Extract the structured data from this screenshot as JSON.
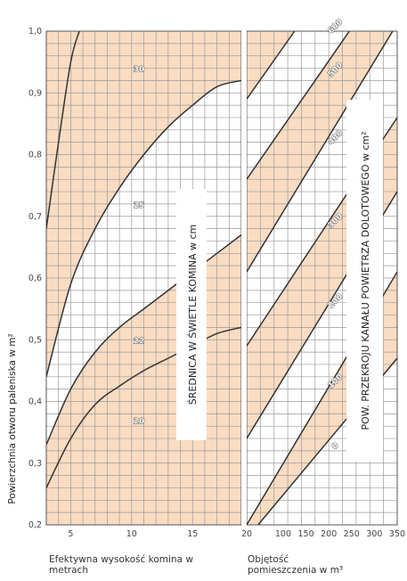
{
  "chart_data": [
    {
      "type": "line",
      "title": "",
      "xlabel": "Efektywna wysokość komina w metrach",
      "ylabel": "Powierzchnia otworu paleniska w m²",
      "xlim": [
        3,
        19
      ],
      "ylim": [
        0.2,
        1.0
      ],
      "x_ticks": [
        "5",
        "10",
        "15"
      ],
      "y_ticks": [
        "0,2",
        "0,3",
        "0,4",
        "0,5",
        "0,6",
        "0,7",
        "0,8",
        "0,9",
        "1,0"
      ],
      "band_label": "ŚREDNICA W ŚWIETLE KOMINA w cm",
      "series": [
        {
          "name": "30",
          "points": [
            [
              3,
              0.68
            ],
            [
              4,
              0.82
            ],
            [
              5,
              0.95
            ],
            [
              5.7,
              1.0
            ]
          ]
        },
        {
          "name": "25",
          "points": [
            [
              3,
              0.44
            ],
            [
              5,
              0.59
            ],
            [
              7,
              0.68
            ],
            [
              9,
              0.746
            ],
            [
              11,
              0.8
            ],
            [
              13,
              0.845
            ],
            [
              15,
              0.88
            ],
            [
              17,
              0.91
            ],
            [
              19,
              0.92
            ]
          ]
        },
        {
          "name": "22",
          "points": [
            [
              3,
              0.33
            ],
            [
              5,
              0.42
            ],
            [
              7,
              0.48
            ],
            [
              9,
              0.52
            ],
            [
              11,
              0.55
            ],
            [
              13,
              0.58
            ],
            [
              15,
              0.61
            ],
            [
              17,
              0.64
            ],
            [
              19,
              0.67
            ]
          ]
        },
        {
          "name": "20",
          "points": [
            [
              3,
              0.26
            ],
            [
              5,
              0.34
            ],
            [
              7,
              0.395
            ],
            [
              9,
              0.425
            ],
            [
              11,
              0.45
            ],
            [
              13,
              0.47
            ],
            [
              15,
              0.49
            ],
            [
              17,
              0.51
            ],
            [
              19,
              0.52
            ]
          ]
        }
      ],
      "shaded_bands": [
        "30",
        "25",
        "22"
      ],
      "value_labels": [
        {
          "text": "30",
          "x": 10.6,
          "y": 0.94
        },
        {
          "text": "25",
          "x": 10.6,
          "y": 0.72
        },
        {
          "text": "22",
          "x": 10.6,
          "y": 0.5
        },
        {
          "text": "20",
          "x": 10.6,
          "y": 0.37
        }
      ],
      "grid": true,
      "colors": {
        "band": "#f9dcc2",
        "line": "#333333",
        "grid": "#9a9a9a"
      }
    },
    {
      "type": "line",
      "title": "",
      "xlabel": "Objętość pomieszczenia w m³",
      "ylabel": "POW. PRZEKROJU KANAŁU POWIETRZA DOLOTOWEGO w cm²",
      "xlim": [
        20,
        350
      ],
      "ylim": [
        0.2,
        1.0
      ],
      "x_ticks": [
        "20",
        "100",
        "150",
        "200",
        "250",
        "300",
        "350"
      ],
      "series": [
        {
          "name": "0",
          "points": [
            [
              45,
              0.2
            ],
            [
              350,
              0.47
            ]
          ]
        },
        {
          "name": "100",
          "points": [
            [
              20,
              0.2
            ],
            [
              350,
              0.61
            ]
          ]
        },
        {
          "name": "200",
          "points": [
            [
              20,
              0.34
            ],
            [
              350,
              0.74
            ]
          ]
        },
        {
          "name": "300",
          "points": [
            [
              20,
              0.49
            ],
            [
              350,
              0.86
            ]
          ]
        },
        {
          "name": "400",
          "points": [
            [
              20,
              0.61
            ],
            [
              340,
              1.0
            ]
          ]
        },
        {
          "name": "500",
          "points": [
            [
              20,
              0.76
            ],
            [
              245,
              1.0
            ]
          ]
        },
        {
          "name": "600",
          "points": [
            [
              20,
              0.89
            ],
            [
              125,
              1.0
            ]
          ]
        }
      ],
      "shaded_bands": [
        "0-100",
        "200-300",
        "400-500",
        "600-top"
      ],
      "value_labels": [
        {
          "text": "0",
          "x": 218,
          "y": 0.325
        },
        {
          "text": "100",
          "x": 218,
          "y": 0.43
        },
        {
          "text": "200",
          "x": 218,
          "y": 0.56
        },
        {
          "text": "300",
          "x": 218,
          "y": 0.69
        },
        {
          "text": "400",
          "x": 218,
          "y": 0.825
        },
        {
          "text": "500",
          "x": 218,
          "y": 0.935
        },
        {
          "text": "600",
          "x": 218,
          "y": 1.005
        }
      ],
      "grid": true
    }
  ]
}
